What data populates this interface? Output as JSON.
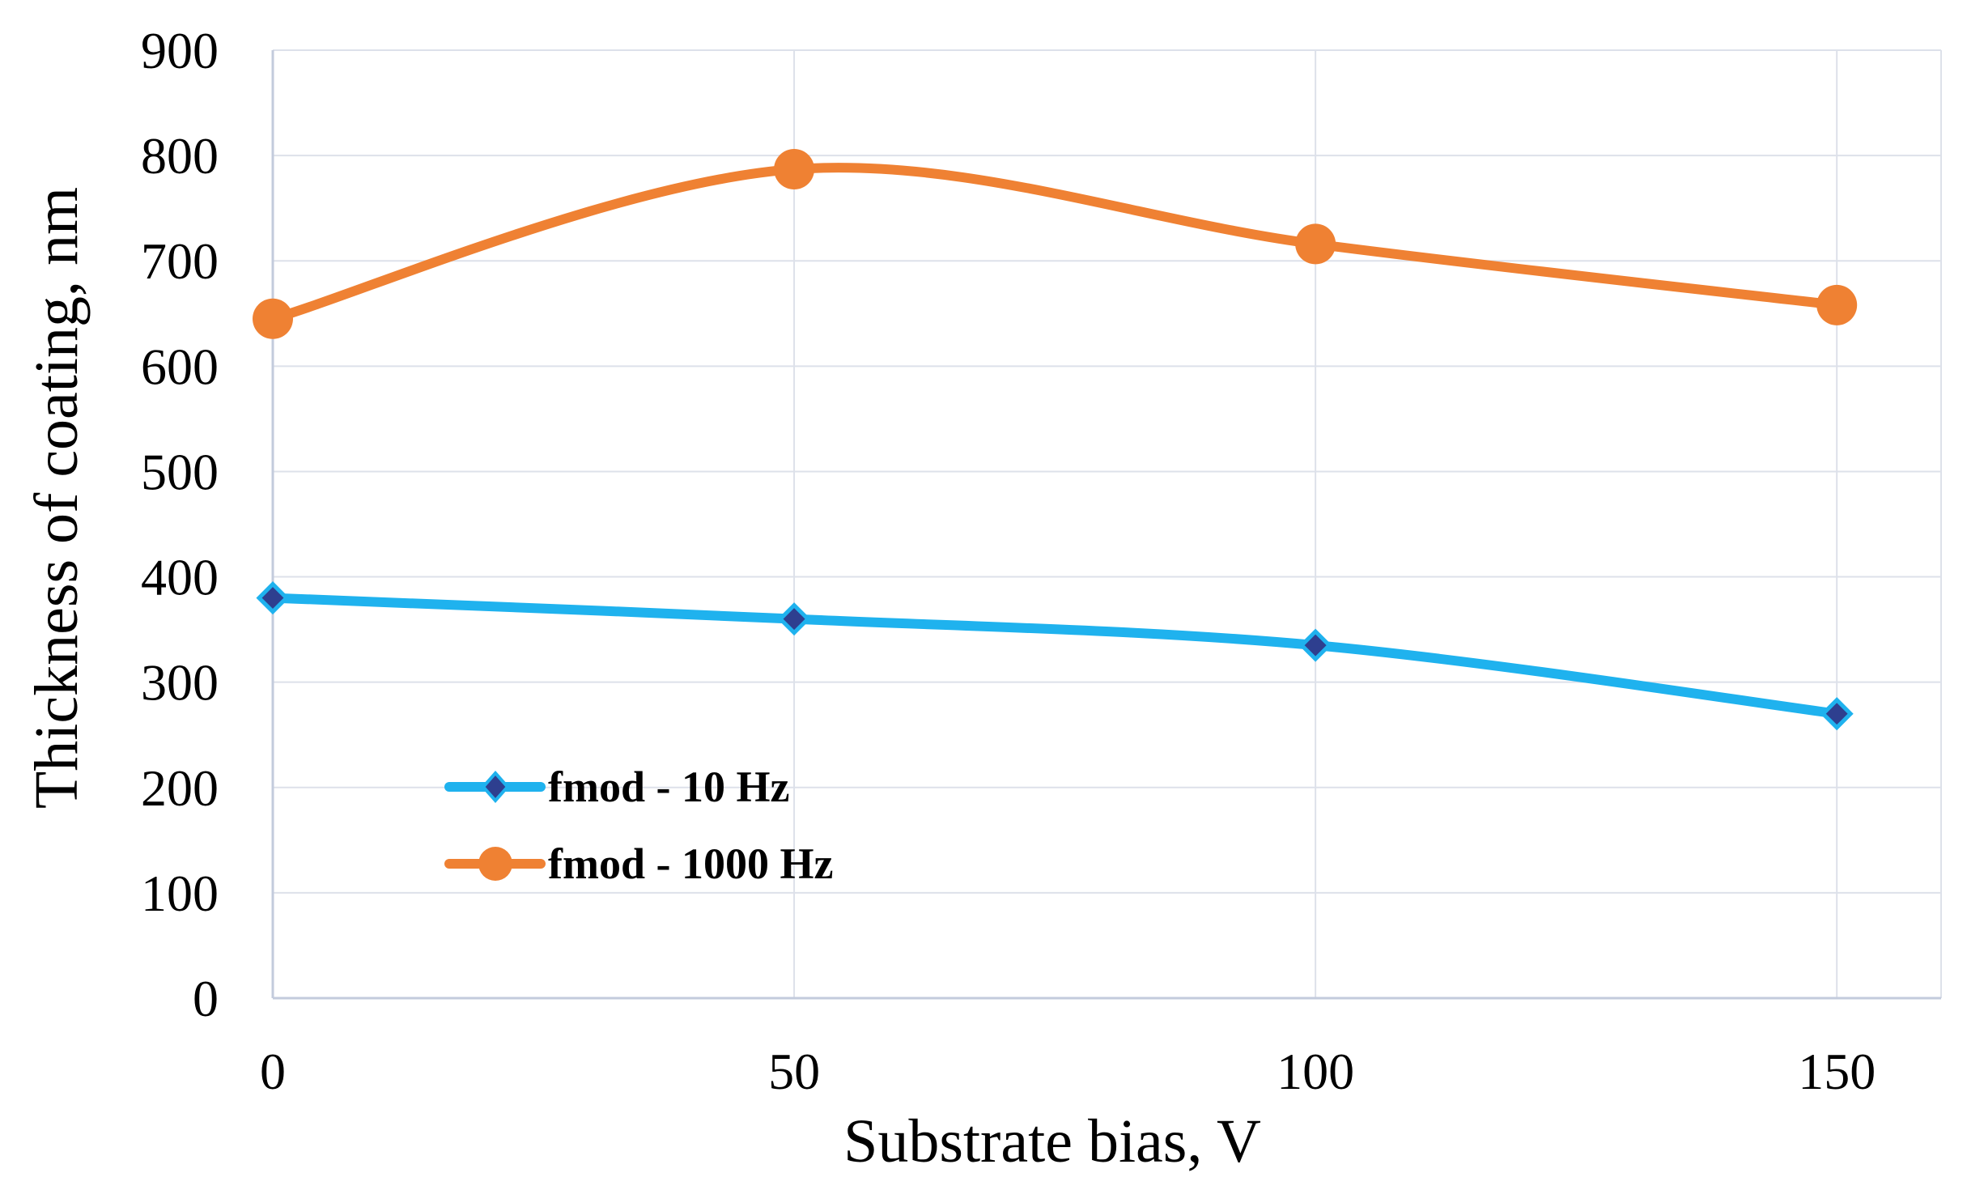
{
  "chart_data": {
    "type": "line",
    "title": "",
    "xlabel": "Substrate bias, V",
    "ylabel": "Thickness of coating, nm",
    "x": [
      0,
      50,
      100,
      150
    ],
    "x_ticks": [
      "0",
      "50",
      "100",
      "150"
    ],
    "xlim": [
      0,
      160
    ],
    "ylim": [
      0,
      900
    ],
    "y_ticks": [
      "0",
      "100",
      "200",
      "300",
      "400",
      "500",
      "600",
      "700",
      "800",
      "900"
    ],
    "grid": true,
    "smooth": true,
    "legend_position": "lower-left",
    "series": [
      {
        "name": "fmod - 10 Hz",
        "values": [
          380,
          360,
          335,
          270
        ],
        "line_color": "#1fb2ee",
        "marker": "diamond",
        "marker_color": "#2e3f8f"
      },
      {
        "name": "fmod - 1000 Hz",
        "values": [
          645,
          787,
          716,
          658
        ],
        "line_color": "#ef8133",
        "marker": "circle",
        "marker_color": "#ef8133"
      }
    ]
  }
}
